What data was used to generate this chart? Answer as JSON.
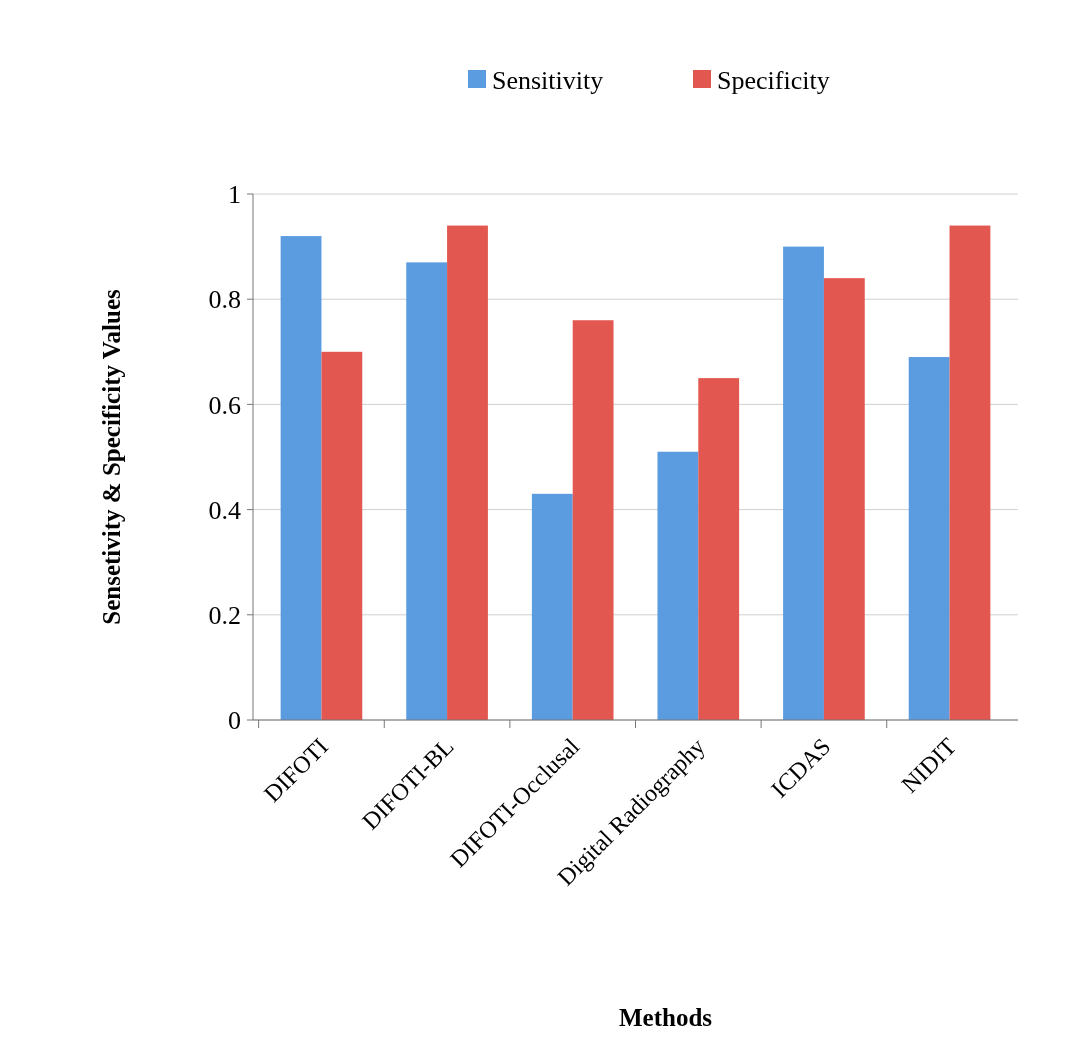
{
  "chart_data": {
    "type": "bar",
    "xlabel": "Methods",
    "ylabel": "Sensetivity & Specificity Values",
    "categories": [
      "DIFOTI",
      "DIFOTI-BL",
      "DIFOTI-Occlusal",
      "Digital Radiography",
      "ICDAS",
      "NIDIT"
    ],
    "series": [
      {
        "name": "Sensitivity",
        "color": "#5b9bdf",
        "values": [
          0.92,
          0.87,
          0.43,
          0.51,
          0.9,
          0.69
        ]
      },
      {
        "name": "Specificity",
        "color": "#e2574f",
        "values": [
          0.7,
          0.94,
          0.76,
          0.65,
          0.84,
          0.94
        ]
      }
    ],
    "ylim": [
      0,
      1
    ],
    "yticks": [
      0,
      {
        "value": 0.2,
        "label": "0.2"
      },
      {
        "value": 0.4,
        "label": "0.4"
      },
      {
        "value": 0.6,
        "label": "0.6"
      },
      {
        "value": 0.8,
        "label": "0.8"
      },
      1
    ],
    "grid": "y",
    "legend": "top"
  }
}
